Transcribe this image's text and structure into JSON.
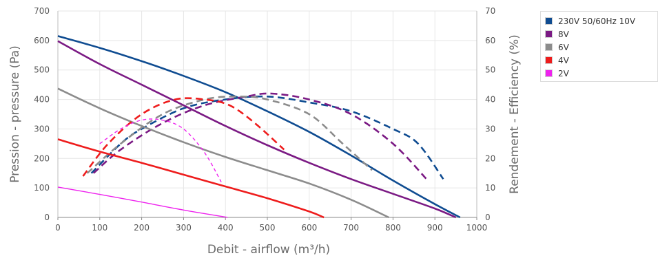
{
  "chart_data": {
    "type": "line",
    "xlabel": "Debit - airflow (m³/h)",
    "ylabel": "Pression - pressure (Pa)",
    "y2label": "Rendement - Efficiency (%)",
    "xlim": [
      0,
      1000
    ],
    "ylim": [
      0,
      700
    ],
    "y2lim": [
      0,
      70
    ],
    "xticks": [
      0,
      100,
      200,
      300,
      400,
      500,
      600,
      700,
      800,
      900,
      1000
    ],
    "yticks": [
      0,
      100,
      200,
      300,
      400,
      500,
      600,
      700
    ],
    "y2ticks": [
      0,
      10,
      20,
      30,
      40,
      50,
      60,
      70
    ],
    "grid": true,
    "legend_position": "right",
    "series": [
      {
        "name": "230V 50/60Hz 10V",
        "color": "#0f4c91",
        "pressure": {
          "x": [
            0,
            100,
            200,
            300,
            400,
            500,
            600,
            700,
            800,
            900,
            960
          ],
          "y": [
            615,
            575,
            530,
            480,
            425,
            360,
            290,
            210,
            125,
            45,
            0
          ]
        },
        "efficiency": {
          "x": [
            80,
            150,
            200,
            300,
            400,
            500,
            600,
            700,
            800,
            860,
            920
          ],
          "y": [
            15,
            25,
            30,
            37,
            40,
            41,
            39,
            36,
            30,
            25,
            13
          ]
        }
      },
      {
        "name": "8V",
        "color": "#7b1a84",
        "pressure": {
          "x": [
            0,
            100,
            200,
            300,
            400,
            500,
            600,
            700,
            800,
            900,
            950
          ],
          "y": [
            598,
            520,
            450,
            380,
            310,
            245,
            185,
            130,
            80,
            30,
            0
          ]
        },
        "efficiency": {
          "x": [
            85,
            150,
            250,
            350,
            450,
            510,
            600,
            700,
            800,
            880
          ],
          "y": [
            15,
            23,
            32,
            38,
            41,
            42,
            40,
            35,
            25,
            13
          ]
        }
      },
      {
        "name": "6V",
        "color": "#8c8c8c",
        "pressure": {
          "x": [
            0,
            100,
            200,
            300,
            400,
            500,
            600,
            700,
            790
          ],
          "y": [
            437,
            370,
            310,
            255,
            205,
            160,
            115,
            60,
            0
          ]
        },
        "efficiency": {
          "x": [
            70,
            150,
            250,
            350,
            430,
            500,
            600,
            680,
            750
          ],
          "y": [
            15,
            25,
            35,
            40,
            41,
            40,
            35,
            25,
            16
          ]
        }
      },
      {
        "name": "4V",
        "color": "#ee1c1c",
        "pressure": {
          "x": [
            0,
            100,
            200,
            300,
            400,
            500,
            600,
            635
          ],
          "y": [
            265,
            223,
            185,
            145,
            105,
            65,
            20,
            0
          ]
        },
        "efficiency": {
          "x": [
            60,
            120,
            200,
            280,
            350,
            410,
            470,
            540
          ],
          "y": [
            14,
            25,
            35,
            40,
            40,
            38,
            32,
            23
          ]
        }
      },
      {
        "name": "2V",
        "color": "#ee22ee",
        "pressure": {
          "x": [
            0,
            100,
            200,
            300,
            405
          ],
          "y": [
            103,
            78,
            52,
            25,
            0
          ]
        },
        "efficiency": {
          "x": [
            100,
            150,
            200,
            250,
            300,
            350,
            390
          ],
          "y": [
            25,
            30,
            33,
            33,
            30,
            22,
            12
          ]
        }
      }
    ]
  }
}
